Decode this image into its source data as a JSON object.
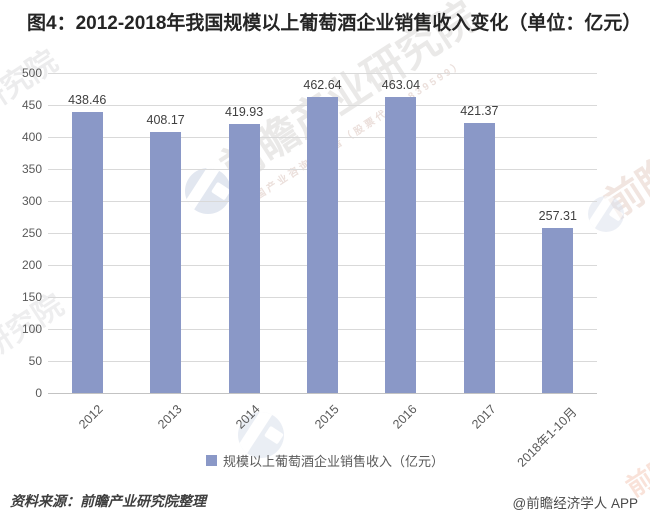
{
  "title": "图4：2012-2018年我国规模以上葡萄酒企业销售收入变化（单位：亿元）",
  "chart_data": {
    "type": "bar",
    "title": "图4：2012-2018年我国规模以上葡萄酒企业销售收入变化（单位：亿元）",
    "categories": [
      "2012",
      "2013",
      "2014",
      "2015",
      "2016",
      "2017",
      "2018年1-10月"
    ],
    "values": [
      438.46,
      408.17,
      419.93,
      462.64,
      463.04,
      421.37,
      257.31
    ],
    "series_name": "规模以上葡萄酒企业销售收入（亿元）",
    "xlabel": "",
    "ylabel": "",
    "ylim": [
      0,
      500
    ],
    "y_ticks": [
      0,
      50,
      100,
      150,
      200,
      250,
      300,
      350,
      400,
      450,
      500
    ],
    "grid": true,
    "legend_position": "bottom",
    "x_tick_rotation": -45
  },
  "legend": {
    "label": "规模以上葡萄酒企业销售收入（亿元）"
  },
  "footer": {
    "source": "资料来源：前瞻产业研究院整理",
    "credit": "@前瞻经济学人 APP"
  },
  "watermarks": {
    "brand": "前瞻产业研究院",
    "tagline": "中国产业咨询领导者（股票代码：839599）",
    "fragment_left": "研究院",
    "fragment_corner": "前瞻"
  },
  "colors": {
    "bar": "#8A98C7",
    "grid": "#D9D9D9",
    "axis": "#C3C3C3",
    "title_text": "#252525",
    "tick_text": "#595959",
    "value_text": "#404040"
  }
}
